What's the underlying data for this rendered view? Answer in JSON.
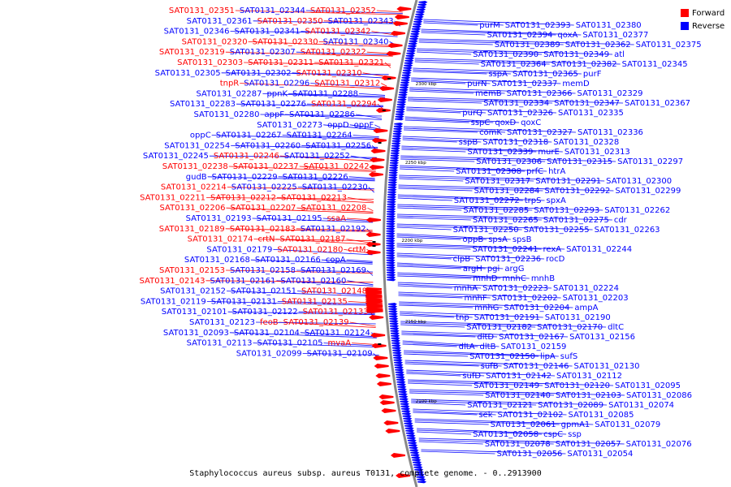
{
  "caption": "Staphylococcus aureus subsp. aureus T0131, complete genome. - 0..2913900",
  "legend": [
    {
      "label": "Forward",
      "color": "#ff0000"
    },
    {
      "label": "Reverse",
      "color": "#0000ff"
    }
  ],
  "colors": {
    "forward": "#ff0000",
    "reverse": "#0000ff",
    "backbone": "#888888"
  },
  "scale_labels": [
    "2300 kbp",
    "2250 kbp",
    "2200 kbp",
    "2150 kbp",
    "2100 kbp"
  ],
  "left_labels": [
    {
      "t": "SAT0131_02352",
      "s": "f"
    },
    {
      "t": "SAT0131_02344",
      "s": "r"
    },
    {
      "t": "SAT0131_02351",
      "s": "f"
    },
    {
      "t": "SAT0131_02343",
      "s": "r"
    },
    {
      "t": "SAT0131_02350",
      "s": "f"
    },
    {
      "t": "SAT0131_02361",
      "s": "r"
    },
    {
      "t": "SAT0131_02342",
      "s": "f"
    },
    {
      "t": "SAT0131_02341",
      "s": "r"
    },
    {
      "t": "SAT0131_02346",
      "s": "r"
    },
    {
      "t": "SAT0131_02340",
      "s": "r"
    },
    {
      "t": "SAT0131_02330",
      "s": "f"
    },
    {
      "t": "SAT0131_02320",
      "s": "f"
    },
    {
      "t": "SAT0131_02322",
      "s": "f"
    },
    {
      "t": "SAT0131_02307",
      "s": "r"
    },
    {
      "t": "SAT0131_02319",
      "s": "f"
    },
    {
      "t": "SAT0131_02321",
      "s": "f"
    },
    {
      "t": "SAT0131_02311",
      "s": "f"
    },
    {
      "t": "SAT0131_02303",
      "s": "f"
    },
    {
      "t": "SAT0131_02310",
      "s": "f"
    },
    {
      "t": "SAT0131_02302",
      "s": "r"
    },
    {
      "t": "SAT0131_02305",
      "s": "r"
    },
    {
      "t": "SAT0131_02312",
      "s": "f"
    },
    {
      "t": "SAT0131_02296",
      "s": "r"
    },
    {
      "t": "tnpR",
      "s": "f"
    },
    {
      "t": "SAT0131_02288",
      "s": "r"
    },
    {
      "t": "ppnK",
      "s": "r"
    },
    {
      "t": "SAT0131_02287",
      "s": "r"
    },
    {
      "t": "SAT0131_02294",
      "s": "f"
    },
    {
      "t": "SAT0131_02276",
      "s": "r"
    },
    {
      "t": "SAT0131_02283",
      "s": "r"
    },
    {
      "t": "SAT0131_02286",
      "s": "r"
    },
    {
      "t": "appF",
      "s": "r"
    },
    {
      "t": "SAT0131_02280",
      "s": "r"
    },
    {
      "t": "oppF",
      "s": "r"
    },
    {
      "t": "oppD",
      "s": "r"
    },
    {
      "t": "SAT0131_02273",
      "s": "r"
    },
    {
      "t": "SAT0131_02264",
      "s": "r"
    },
    {
      "t": "SAT0131_02267",
      "s": "r"
    },
    {
      "t": "oppC",
      "s": "r"
    },
    {
      "t": "SAT0131_02256",
      "s": "r"
    },
    {
      "t": "SAT0131_02260",
      "s": "r"
    },
    {
      "t": "SAT0131_02254",
      "s": "r"
    },
    {
      "t": "SAT0131_02252",
      "s": "r"
    },
    {
      "t": "SAT0131_02246",
      "s": "f"
    },
    {
      "t": "SAT0131_02245",
      "s": "r"
    },
    {
      "t": "SAT0131_02242",
      "s": "f"
    },
    {
      "t": "SAT0131_02237",
      "s": "f"
    },
    {
      "t": "SAT0131_02238",
      "s": "f"
    },
    {
      "t": "SAT0131_02226",
      "s": "r"
    },
    {
      "t": "SAT0131_02229",
      "s": "r"
    },
    {
      "t": "gudB",
      "s": "r"
    },
    {
      "t": "SAT0131_02230",
      "s": "r"
    },
    {
      "t": "SAT0131_02225",
      "s": "r"
    },
    {
      "t": "SAT0131_02214",
      "s": "f"
    },
    {
      "t": "SAT0131_02213",
      "s": "f"
    },
    {
      "t": "SAT0131_02212",
      "s": "f"
    },
    {
      "t": "SAT0131_02211",
      "s": "f"
    },
    {
      "t": "SAT0131_02208",
      "s": "f"
    },
    {
      "t": "SAT0131_02207",
      "s": "f"
    },
    {
      "t": "SAT0131_02206",
      "s": "f"
    },
    {
      "t": "ssaA",
      "s": "f"
    },
    {
      "t": "SAT0131_02195",
      "s": "r"
    },
    {
      "t": "SAT0131_02193",
      "s": "r"
    },
    {
      "t": "SAT0131_02192",
      "s": "r"
    },
    {
      "t": "SAT0131_02183",
      "s": "f"
    },
    {
      "t": "SAT0131_02189",
      "s": "f"
    },
    {
      "t": "SAT0131_02187",
      "s": "f"
    },
    {
      "t": "crtN",
      "s": "f"
    },
    {
      "t": "SAT0131_02174",
      "s": "f"
    },
    {
      "t": "crtM",
      "s": "f"
    },
    {
      "t": "SAT0131_02180",
      "s": "f"
    },
    {
      "t": "SAT0131_02179",
      "s": "r"
    },
    {
      "t": "copA",
      "s": "r"
    },
    {
      "t": "SAT0131_02166",
      "s": "r"
    },
    {
      "t": "SAT0131_02168",
      "s": "r"
    },
    {
      "t": "SAT0131_02169",
      "s": "r"
    },
    {
      "t": "SAT0131_02158",
      "s": "r"
    },
    {
      "t": "SAT0131_02153",
      "s": "f"
    },
    {
      "t": "SAT0131_02160",
      "s": "r"
    },
    {
      "t": "SAT0131_02161",
      "s": "r"
    },
    {
      "t": "SAT0131_02143",
      "s": "f"
    },
    {
      "t": "SAT0131_02148",
      "s": "f"
    },
    {
      "t": "SAT0131_02151",
      "s": "r"
    },
    {
      "t": "SAT0131_02152",
      "s": "r"
    },
    {
      "t": "SAT0131_02135",
      "s": "f"
    },
    {
      "t": "SAT0131_02131",
      "s": "r"
    },
    {
      "t": "SAT0131_02119",
      "s": "r"
    },
    {
      "t": "SAT0131_02133",
      "s": "f"
    },
    {
      "t": "SAT0131_02122",
      "s": "r"
    },
    {
      "t": "SAT0131_02101",
      "s": "r"
    },
    {
      "t": "SAT0131_02139",
      "s": "f"
    },
    {
      "t": "feoB",
      "s": "f"
    },
    {
      "t": "SAT0131_02123",
      "s": "r"
    },
    {
      "t": "SAT0131_02124",
      "s": "r"
    },
    {
      "t": "SAT0131_02104",
      "s": "r"
    },
    {
      "t": "SAT0131_02093",
      "s": "r"
    },
    {
      "t": "mvaA",
      "s": "f"
    },
    {
      "t": "SAT0131_02105",
      "s": "r"
    },
    {
      "t": "SAT0131_02113",
      "s": "r"
    },
    {
      "t": "SAT0131_02109",
      "s": "r"
    },
    {
      "t": "SAT0131_02099",
      "s": "r"
    }
  ],
  "right_labels": [
    "purM",
    "SAT0131_02393",
    "SAT0131_02380",
    "SAT0131_02394",
    "qoxA",
    "SAT0131_02377",
    "SAT0131_02389",
    "SAT0131_02362",
    "SAT0131_02375",
    "SAT0131_02390",
    "SAT0131_02349",
    "atl",
    "SAT0131_02364",
    "SAT0131_02382",
    "SAT0131_02345",
    "sspA",
    "SAT0131_02365",
    "purF",
    "purN",
    "SAT0131_02337",
    "memD",
    "memB",
    "SAT0131_02366",
    "SAT0131_02329",
    "SAT0131_02334",
    "SAT0131_02347",
    "SAT0131_02367",
    "purQ",
    "SAT0131_02326",
    "SAT0131_02335",
    "sspC",
    "qoxD",
    "qoxC",
    "comK",
    "SAT0131_02327",
    "SAT0131_02336",
    "sspB",
    "SAT0131_02318",
    "SAT0131_02328",
    "SAT0131_02339",
    "murE",
    "SAT0131_02313",
    "SAT0131_02306",
    "SAT0131_02315",
    "SAT0131_02297",
    "SAT0131_02308",
    "prfC",
    "htrA",
    "SAT0131_02317",
    "SAT0131_02291",
    "SAT0131_02300",
    "SAT0131_02284",
    "SAT0131_02292",
    "SAT0131_02299",
    "SAT0131_02272",
    "trpS",
    "spxA",
    "SAT0131_02285",
    "SAT0131_02293",
    "SAT0131_02262",
    "SAT0131_02265",
    "SAT0131_02275",
    "cdr",
    "SAT0131_02250",
    "SAT0131_02255",
    "SAT0131_02263",
    "oppB",
    "spsA",
    "spsB",
    "SAT0131_02241",
    "rexA",
    "SAT0131_02244",
    "clpB",
    "SAT0131_02236",
    "rocD",
    "argH",
    "pgi",
    "argG",
    "mnhD",
    "mnhC",
    "mnhB",
    "mnhA",
    "SAT0131_02223",
    "SAT0131_02224",
    "mnhF",
    "SAT0131_02202",
    "SAT0131_02203",
    "mnhG",
    "SAT0131_02204",
    "ampA",
    "tnp",
    "SAT0131_02191",
    "SAT0131_02190",
    "SAT0131_02182",
    "SAT0131_02170",
    "dltC",
    "dltD",
    "SAT0131_02167",
    "SAT0131_02156",
    "dltA",
    "dltB",
    "SAT0131_02159",
    "SAT0131_02150",
    "lipA",
    "sufS",
    "sufB",
    "SAT0131_02146",
    "SAT0131_02130",
    "sufD",
    "SAT0131_02142",
    "SAT0131_02112",
    "SAT0131_02149",
    "SAT0131_02120",
    "SAT0131_02095",
    "SAT0131_02140",
    "SAT0131_02103",
    "SAT0131_02086",
    "SAT0131_02121",
    "SAT0131_02089",
    "SAT0131_02074",
    "sek",
    "SAT0131_02102",
    "SAT0131_02085",
    "SAT0131_02061",
    "gpmA1",
    "SAT0131_02079",
    "SAT0131_02058",
    "cspC",
    "ssp",
    "SAT0131_02078",
    "SAT0131_02057",
    "SAT0131_02076",
    "SAT0131_02056",
    "SAT0131_02054"
  ]
}
